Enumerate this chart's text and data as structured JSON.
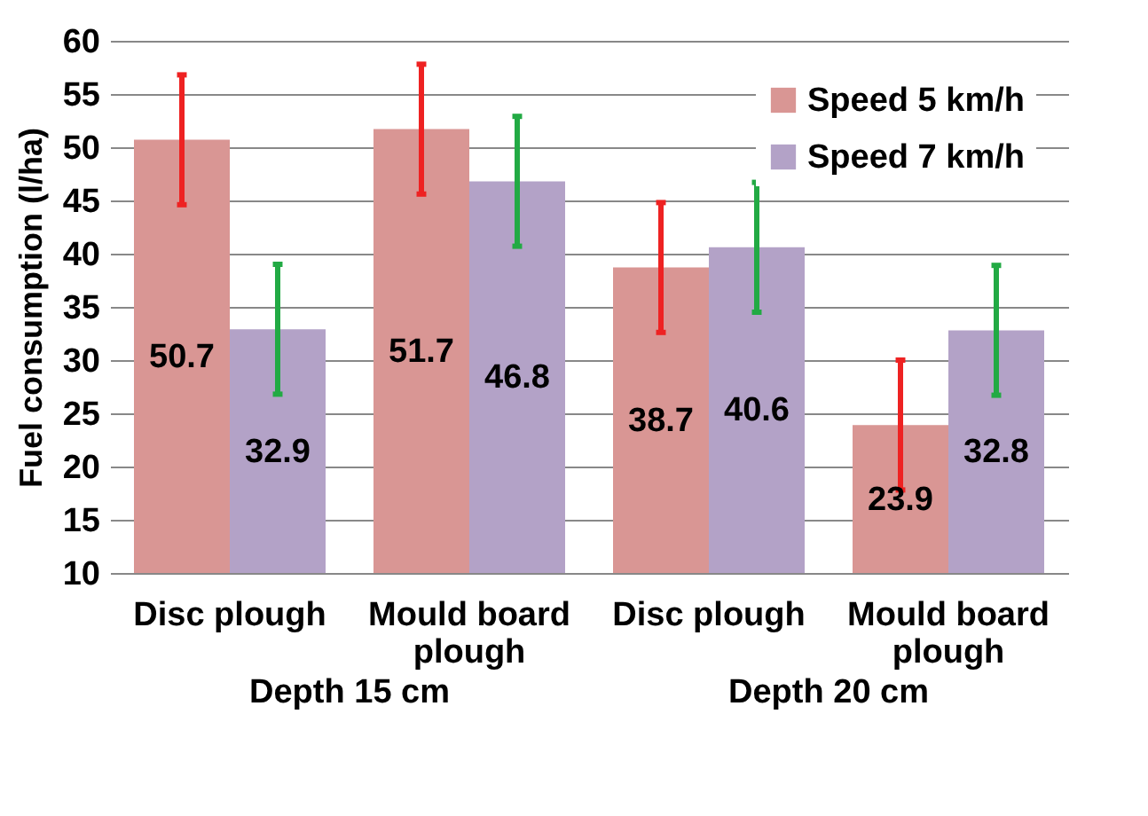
{
  "chart_data": {
    "type": "bar",
    "ylabel": "Fuel consumption  (l/ha)",
    "categories": [
      "Disc plough",
      "Mould board plough",
      "Disc plough",
      "Mould board plough"
    ],
    "series": [
      {
        "name": "Speed 5 km/h",
        "color": "#d99694",
        "values": [
          50.7,
          51.7,
          38.7,
          23.9
        ],
        "errors": [
          6.1,
          6.1,
          6.1,
          6.1
        ]
      },
      {
        "name": "Speed 7 km/h",
        "color": "#b3a2c7",
        "values": [
          32.9,
          46.8,
          40.6,
          32.8
        ],
        "errors": [
          6.1,
          6.1,
          6.1,
          6.1
        ]
      }
    ],
    "annotations": [
      "Depth 15 cm",
      "Depth 20 cm"
    ],
    "ylim": [
      10,
      60
    ],
    "yticks": [
      10,
      15,
      20,
      25,
      30,
      35,
      40,
      45,
      50,
      55,
      60
    ],
    "grid": "y",
    "legend": "top right",
    "data_labels": true
  }
}
